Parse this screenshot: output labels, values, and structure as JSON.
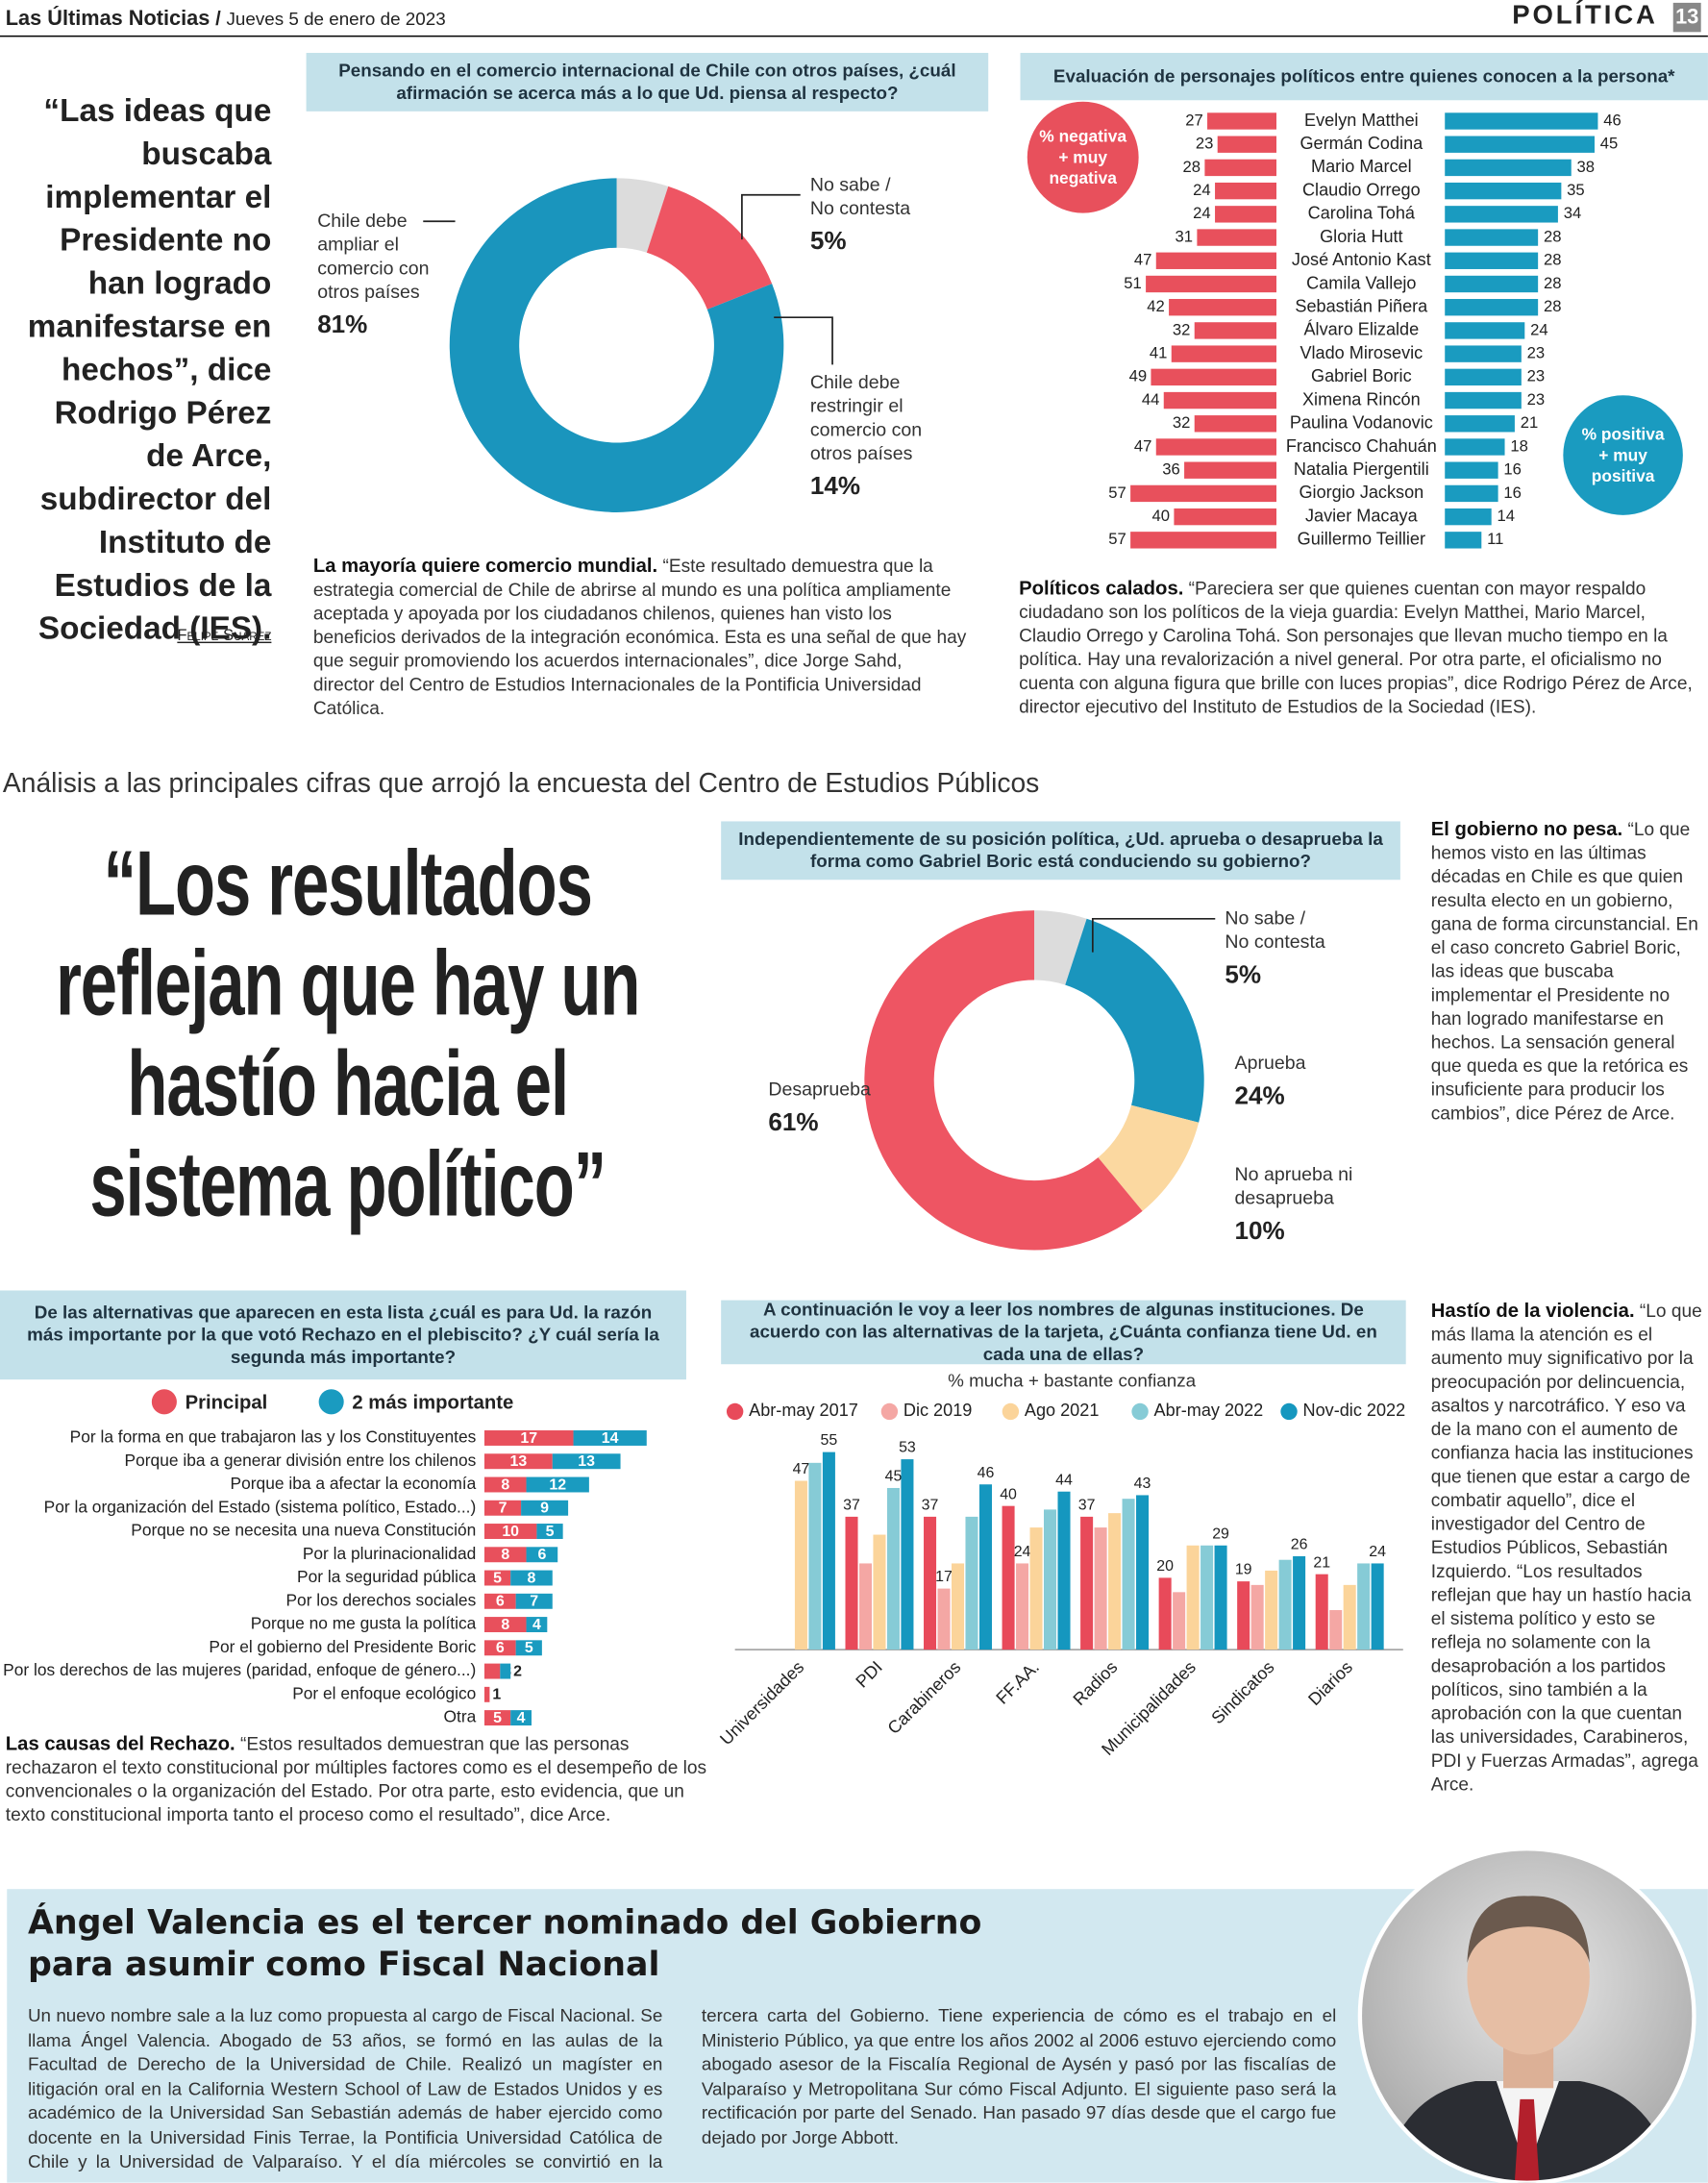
{
  "header": {
    "newspaper": "Las Últimas Noticias",
    "separator": "/",
    "date": "Jueves 5 de enero de 2023",
    "section": "POLÍTICA",
    "page": 13
  },
  "side_quote": {
    "text": "“Las ideas que buscaba implementar el Presidente no han logrado manifestarse en hechos”, dice Rodrigo Pérez de Arce, subdirector del Instituto de Estudios de la Sociedad (IES).",
    "byline": "Felipe Suárez"
  },
  "section_heading": "Análisis a las principales cifras que arrojó la encuesta del Centro de Estudios Públicos",
  "main_quote": "“Los resultados reflejan que hay un hastío hacia el sistema político”",
  "articles": [
    {
      "lead": "La mayoría quiere comercio mundial.",
      "body": "“Este resultado demuestra que la estrategia comercial de Chile de abrirse al mundo es una política ampliamente aceptada y apoyada por los ciudadanos chilenos, quienes han visto los beneficios derivados de la integración económica. Esta es una señal de que hay que seguir promoviendo los acuerdos internacionales”, dice Jorge Sahd, director del Centro de Estudios Internacionales de la Pontificia Universidad Católica."
    },
    {
      "lead": "Políticos calados.",
      "body": "“Pareciera ser que quienes cuentan con mayor respaldo ciudadano son los políticos de la vieja guardia: Evelyn Matthei, Mario Marcel, Claudio Orrego y Carolina Tohá. Son personajes que llevan mucho tiempo en la política. Hay una revalorización a nivel general. Por otra parte, el oficialismo no cuenta con alguna figura que brille con luces propias”, dice Rodrigo Pérez de Arce, director ejecutivo del Instituto de Estudios de la Sociedad (IES)."
    },
    {
      "lead": "El gobierno no pesa.",
      "body": "“Lo que hemos visto en las últimas décadas en Chile es que quien resulta electo en un gobierno, gana de forma circunstancial. En el caso concreto Gabriel Boric, las ideas que buscaba implementar el Presidente no han logrado manifestarse en hechos. La sensación general que queda es que la retórica es insuficiente para producir los cambios”, dice Pérez de Arce."
    },
    {
      "lead": "Las causas del Rechazo.",
      "body": "“Estos resultados demuestran que las personas rechazaron el texto constitucional por múltiples factores como es el desempeño de los convencionales o la organización del Estado. Por otra parte, esto evidencia, que un texto constitucional importa tanto el proceso como el resultado”, dice Arce."
    },
    {
      "lead": "Hastío de la violencia.",
      "body": "“Lo que más llama la atención es el aumento muy significativo por la preocupación por delincuencia, asaltos y narcotráfico. Y eso va de la mano con el aumento de confianza hacia las instituciones que tienen que estar a cargo de combatir aquello”, dice el investigador del Centro de Estudios Públicos, Sebastián Izquierdo. “Los resultados reflejan que hay un hastío hacia el sistema político y esto se refleja no solamente con la desaprobación a los partidos políticos, sino también a la aprobación con la que cuentan las universidades, Carabineros, PDI y Fuerzas Armadas”, agrega Arce."
    }
  ],
  "chart_data": [
    {
      "type": "donut",
      "title": "Pensando en el comercio internacional de Chile con otros países, ¿cuál afirmación se acerca más a lo que Ud. piensa al respecto?",
      "categories": [
        "No sabe / No contesta",
        "Chile debe restringir el comercio con otros países",
        "Chile debe ampliar el comercio con otros países"
      ],
      "values": [
        5,
        14,
        81
      ],
      "value_labels": [
        "5%",
        "14%",
        "81%"
      ],
      "colors": [
        "#dcdcdc",
        "#ee5563",
        "#1a95bd"
      ]
    },
    {
      "type": "diverging_bar",
      "title": "Evaluación de personajes políticos entre quienes conocen a la persona*",
      "categories": [
        "Evelyn Matthei",
        "Germán Codina",
        "Mario Marcel",
        "Claudio Orrego",
        "Carolina Tohá",
        "Gloria Hutt",
        "José Antonio Kast",
        "Camila Vallejo",
        "Sebastián Piñera",
        "Álvaro Elizalde",
        "Vlado Mirosevic",
        "Gabriel Boric",
        "Ximena Rincón",
        "Paulina Vodanovic",
        "Francisco Chahuán",
        "Natalia Piergentili",
        "Giorgio Jackson",
        "Javier Macaya",
        "Guillermo Teillier"
      ],
      "series": [
        {
          "name": "% negativa + muy negativa",
          "color": "#e8505c",
          "values": [
            27,
            23,
            28,
            24,
            24,
            31,
            47,
            51,
            42,
            32,
            41,
            49,
            44,
            32,
            47,
            36,
            57,
            40,
            57
          ]
        },
        {
          "name": "% positiva + muy positiva",
          "color": "#1a9bc0",
          "values": [
            46,
            45,
            38,
            35,
            34,
            28,
            28,
            28,
            28,
            24,
            23,
            23,
            23,
            21,
            18,
            16,
            16,
            14,
            11
          ]
        }
      ]
    },
    {
      "type": "donut",
      "title": "Independientemente de su posición política, ¿Ud. aprueba o desaprueba la forma como Gabriel Boric está conduciendo su gobierno?",
      "categories": [
        "No sabe / No contesta",
        "Aprueba",
        "No aprueba ni desaprueba",
        "Desaprueba"
      ],
      "values": [
        5,
        24,
        10,
        61
      ],
      "value_labels": [
        "5%",
        "24%",
        "10%",
        "61%"
      ],
      "colors": [
        "#dcdcdc",
        "#1a95bd",
        "#fbd8a0",
        "#ee5563"
      ]
    },
    {
      "type": "stacked_bar",
      "title": "De las alternativas que aparecen en esta lista ¿cuál es para Ud. la razón más importante por la que votó Rechazo en el plebiscito? ¿Y cuál sería la segunda más importante?",
      "categories": [
        "Por la forma en que trabajaron las y los Constituyentes",
        "Porque iba a generar división entre los chilenos",
        "Porque iba a afectar la economía",
        "Por la organización del Estado (sistema político, Estado...)",
        "Porque no se necesita una nueva Constitución",
        "Por la plurinacionalidad",
        "Por la seguridad pública",
        "Por los derechos sociales",
        "Porque no me gusta la política",
        "Por el gobierno del Presidente Boric",
        "Por los derechos de las mujeres (paridad, enfoque de género...)",
        "Por el enfoque ecológico",
        "Otra"
      ],
      "series": [
        {
          "name": "Principal",
          "color": "#e8505c",
          "values": [
            17,
            13,
            8,
            7,
            10,
            8,
            5,
            6,
            8,
            6,
            3,
            1,
            5
          ]
        },
        {
          "name": "2 más importante",
          "color": "#1a9bc0",
          "values": [
            14,
            13,
            12,
            9,
            5,
            6,
            8,
            7,
            4,
            5,
            2,
            null,
            4
          ]
        }
      ]
    },
    {
      "type": "grouped_bar",
      "title": "A continuación le voy a leer los nombres de algunas instituciones. De acuerdo con las alternativas de la tarjeta, ¿Cuánta confianza tiene Ud. en cada una de ellas?",
      "subtitle": "% mucha + bastante confianza",
      "categories": [
        "Universidades",
        "PDI",
        "Carabineros",
        "FF.AA.",
        "Radios",
        "Municipalidades",
        "Sindicatos",
        "Diarios"
      ],
      "series": [
        {
          "name": "Abr-may 2017",
          "color": "#e84a5a",
          "values": [
            null,
            37,
            37,
            40,
            37,
            20,
            19,
            21
          ],
          "value_labels": [
            null,
            "37",
            "37",
            "40",
            "37",
            "20",
            "19",
            "21"
          ]
        },
        {
          "name": "Dic 2019",
          "color": "#f4a7a4",
          "values": [
            null,
            24,
            17,
            24,
            34,
            16,
            18,
            11
          ],
          "value_labels": [
            null,
            null,
            "17",
            "24",
            null,
            null,
            null,
            null
          ]
        },
        {
          "name": "Ago 2021",
          "color": "#fbd49a",
          "values": [
            47,
            32,
            24,
            34,
            38,
            29,
            22,
            18
          ],
          "value_labels": [
            "47",
            null,
            null,
            null,
            null,
            null,
            null,
            null
          ]
        },
        {
          "name": "Abr-may 2022",
          "color": "#86cbd6",
          "values": [
            52,
            45,
            37,
            39,
            42,
            29,
            25,
            24
          ],
          "value_labels": [
            null,
            "45",
            null,
            null,
            null,
            null,
            null,
            null
          ]
        },
        {
          "name": "Nov-dic 2022",
          "color": "#1597bf",
          "values": [
            55,
            53,
            46,
            44,
            43,
            29,
            26,
            24
          ],
          "value_labels": [
            "55",
            "53",
            "46",
            "44",
            "43",
            "29",
            "26",
            "24"
          ]
        }
      ]
    }
  ],
  "news": {
    "title": "Ángel Valencia es el tercer nominado del Gobierno para asumir como Fiscal Nacional",
    "body": "Un nuevo nombre sale a la luz como propuesta al cargo de Fiscal Nacional. Se llama Ángel Valencia. Abogado de 53 años, se formó en las aulas de la Facultad de Derecho de la Universidad de Chile. Realizó un magíster en litigación oral en la California Western School of Law de Estados Unidos y es académico de la Universidad San Sebastián además de haber ejercido como docente en la Universidad Finis Terrae, la Pontificia Universidad Católica de Chile y la Universidad de Valparaíso. Y el día miércoles se convirtió en la tercera carta del Gobierno. Tiene experiencia de cómo es el trabajo en el Ministerio Público, ya que entre los años 2002 al 2006 estuvo ejerciendo como abogado asesor de la Fiscalía Regional de Aysén y pasó por las fiscalías de Valparaíso y Metropolitana Sur cómo Fiscal Adjunto. El siguiente paso será la rectificación por parte del Senado. Han pasado 97 días desde que el cargo fue dejado por Jorge Abbott."
  }
}
